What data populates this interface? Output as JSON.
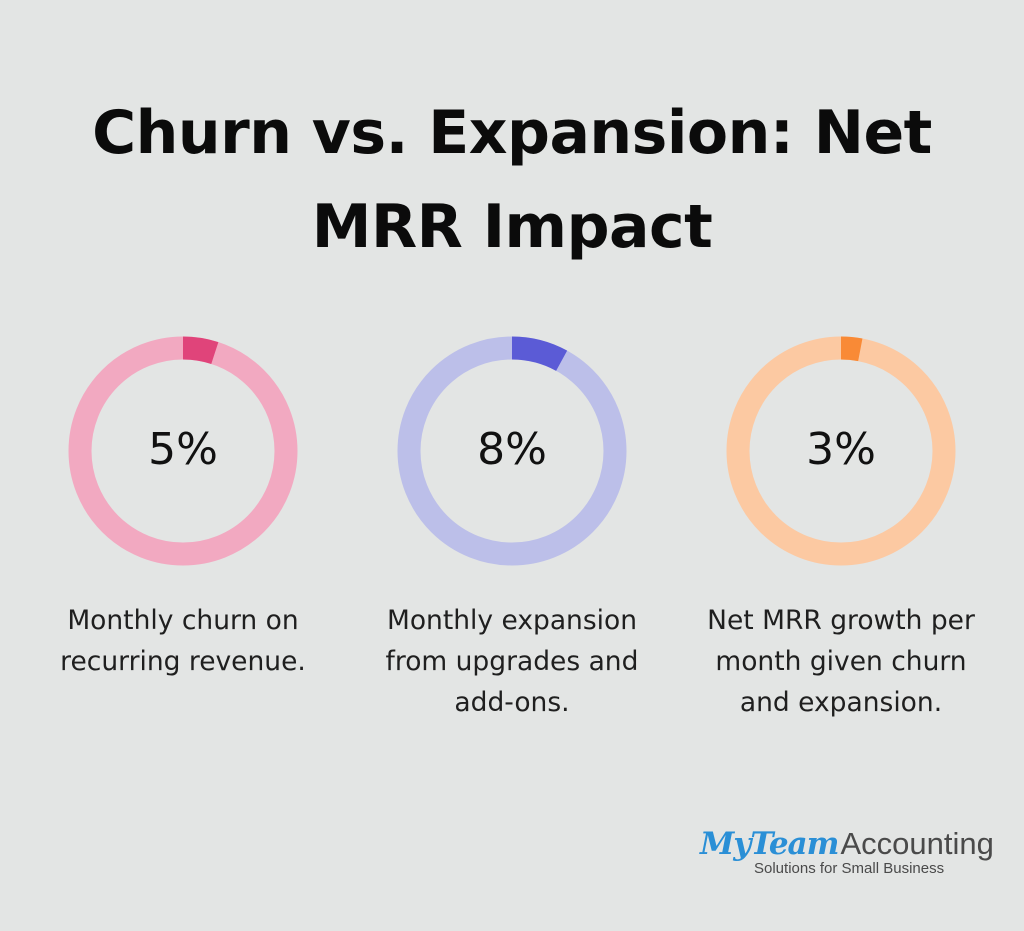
{
  "title": {
    "line1": "Churn vs. Expansion: Net",
    "line2": "MRR Impact"
  },
  "chart_data": {
    "type": "pie",
    "variant": "donut-progress",
    "title": "Churn vs. Expansion: Net MRR Impact",
    "items": [
      {
        "value": 5,
        "label": "5%",
        "description": "Monthly churn on\nrecurring revenue.",
        "track_color": "#f2a9c1",
        "fill_color": "#e0447a"
      },
      {
        "value": 8,
        "label": "8%",
        "description": "Monthly expansion\nfrom upgrades and\nadd-ons.",
        "track_color": "#bcbfe9",
        "fill_color": "#5b5bd6"
      },
      {
        "value": 3,
        "label": "3%",
        "description": "Net MRR growth per\nmonth given churn\nand expansion.",
        "track_color": "#fcc9a2",
        "fill_color": "#f98a36"
      }
    ]
  },
  "logo": {
    "brand_script": "MyTeam",
    "brand_word": "Accounting",
    "tagline": "Solutions for Small Business"
  }
}
